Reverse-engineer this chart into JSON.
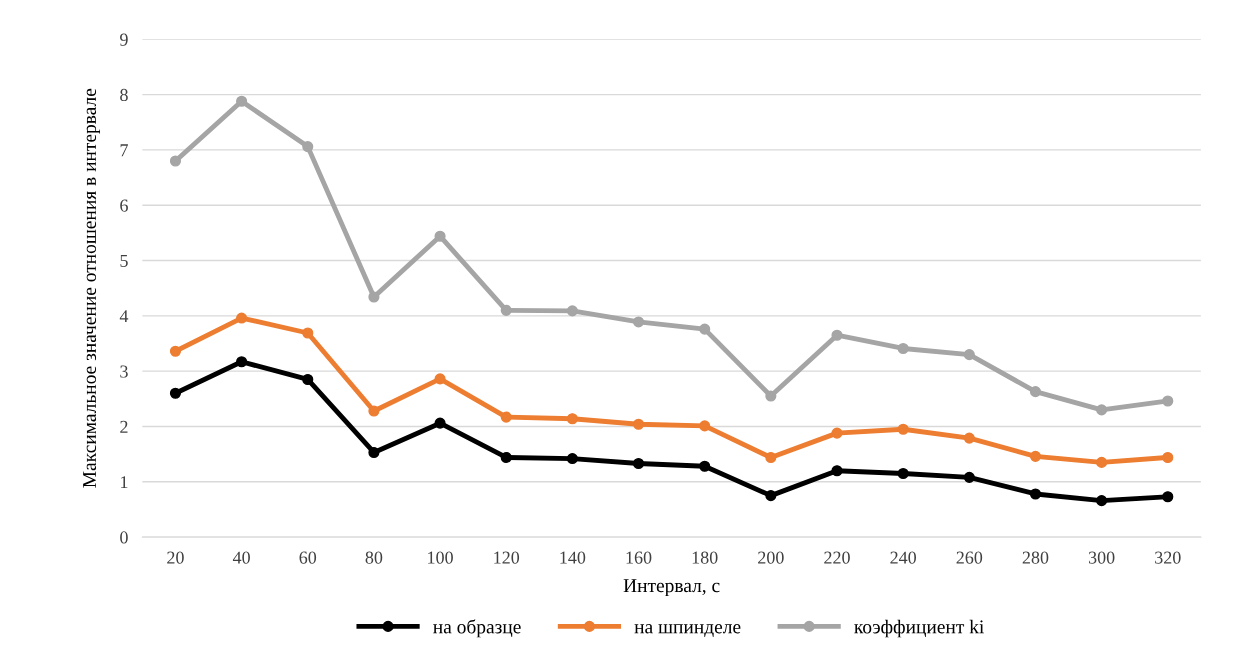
{
  "chart_data": {
    "type": "line",
    "xlabel": "Интервал, с",
    "ylabel": "Максимальное значение отношения в интервале",
    "categories": [
      "20",
      "40",
      "60",
      "80",
      "100",
      "120",
      "140",
      "160",
      "180",
      "200",
      "220",
      "240",
      "260",
      "280",
      "300",
      "320"
    ],
    "series": [
      {
        "name": "на образце",
        "color": "#000000",
        "values": [
          2.6,
          3.17,
          2.85,
          1.53,
          2.06,
          1.44,
          1.42,
          1.33,
          1.28,
          0.75,
          1.2,
          1.15,
          1.08,
          0.78,
          0.66,
          0.73
        ]
      },
      {
        "name": "на шпинделе",
        "color": "#ed7d31",
        "values": [
          3.36,
          3.96,
          3.69,
          2.28,
          2.86,
          2.17,
          2.14,
          2.04,
          2.01,
          1.44,
          1.88,
          1.95,
          1.79,
          1.46,
          1.35,
          1.44
        ]
      },
      {
        "name": "коэффициент ki",
        "color": "#a5a5a5",
        "values": [
          6.8,
          7.88,
          7.06,
          4.34,
          5.44,
          4.1,
          4.09,
          3.89,
          3.76,
          2.55,
          3.65,
          3.41,
          3.3,
          2.63,
          2.3,
          2.46
        ]
      }
    ],
    "ylim": [
      0,
      9
    ],
    "yticks": [
      0,
      1,
      2,
      3,
      4,
      5,
      6,
      7,
      8,
      9
    ],
    "grid": "y",
    "legend": "bottom",
    "marker": "circle",
    "line_style": "solid"
  }
}
